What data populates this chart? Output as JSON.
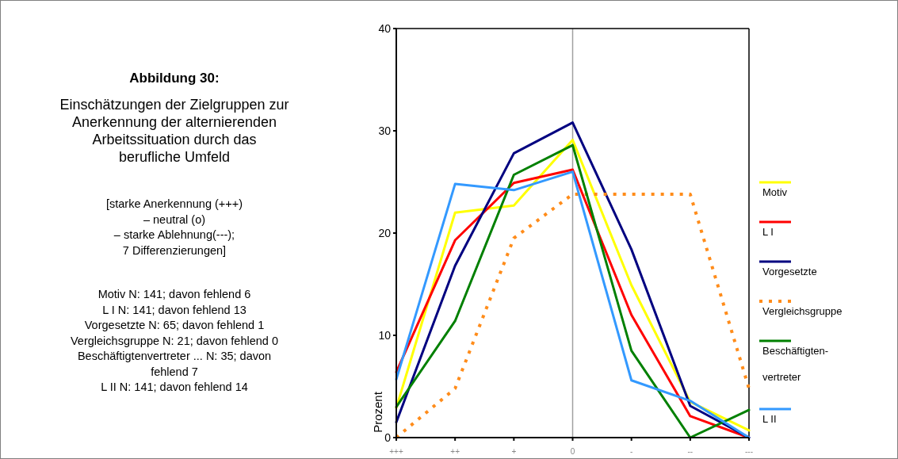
{
  "chart_data": {
    "type": "line",
    "title": "Abbildung  30:",
    "subtitle": "Einschätzungen der Zielgruppen zur\nAnerkennung der alternierenden\nArbeitssituation durch das\nberufliche Umfeld",
    "ylabel": "Prozent",
    "annotations": [
      "[starke Anerkennung (+++)\n– neutral (o)\n– starke Ablehnung(---);\n7 Differenzierungen]",
      "Motiv N: 141; davon fehlend 6\nL I N: 141; davon fehlend 13\nVorgesetzte N: 65; davon fehlend 1\nVergleichsgruppe N: 21; davon fehlend 0\nBeschäftigtenvertreter ... N: 35; davon\nfehlend 7\nL II N: 141; davon fehlend 14"
    ],
    "categories": [
      "+++",
      "++",
      "+",
      "0",
      "-",
      "--",
      "---"
    ],
    "series": [
      {
        "name": "Motiv",
        "color": "#ffff00",
        "values": [
          2.9,
          22.0,
          22.7,
          29.1,
          14.9,
          3.5,
          0.7
        ]
      },
      {
        "name": "L I",
        "color": "#ff0000",
        "values": [
          6.4,
          19.3,
          24.9,
          26.2,
          12.0,
          2.1,
          0
        ]
      },
      {
        "name": "Vorgesetzte",
        "color": "#000080",
        "values": [
          1.5,
          16.8,
          27.8,
          30.8,
          18.4,
          3.1,
          0
        ]
      },
      {
        "name": "Vergleichsgruppe",
        "color": "#ff8c1a",
        "line_style": "dotted",
        "values": [
          0,
          4.8,
          19.5,
          23.8,
          23.8,
          23.8,
          4.8
        ]
      },
      {
        "name": "Beschäftigten-\nvertreter",
        "color": "#008000",
        "values": [
          3.0,
          11.4,
          25.7,
          28.6,
          8.5,
          0,
          2.7
        ]
      },
      {
        "name": "L II",
        "color": "#3399ff",
        "values": [
          5.7,
          24.8,
          24.2,
          26.0,
          5.6,
          3.6,
          0
        ]
      }
    ],
    "ylim": [
      0,
      40
    ],
    "yticks": [
      0,
      10,
      20,
      30,
      40
    ],
    "grid": false,
    "legend": "right",
    "line_style": "solid",
    "marker": "none",
    "ref_lines": [
      {
        "axis": "x",
        "value": "0",
        "color": "#a0a0a0"
      }
    ]
  }
}
